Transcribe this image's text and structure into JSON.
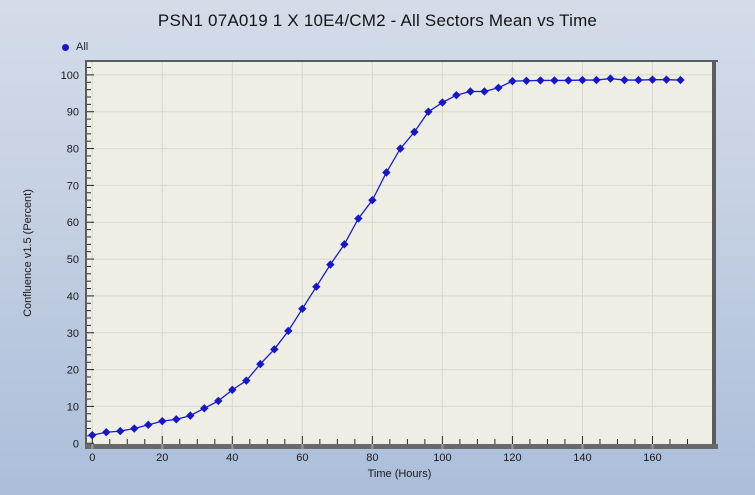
{
  "window": {
    "title": "PSN1 07A019 1 X 10E4/CM2 - All Sectors Mean vs Time"
  },
  "chart_data": {
    "type": "line",
    "title": "PSN1 07A019 1 X 10E4/CM2 - All Sectors Mean vs Time",
    "xlabel": "Time (Hours)",
    "ylabel": "Confluence v1.5 (Percent)",
    "xlim": [
      -1.5,
      177
    ],
    "ylim": [
      -0.2,
      103.5
    ],
    "grid": true,
    "legend_position": "top-left",
    "x_major_ticks": [
      0,
      20,
      40,
      60,
      80,
      100,
      120,
      140,
      160
    ],
    "x_minor_tick_step": 5,
    "y_major_ticks": [
      0,
      10,
      20,
      30,
      40,
      50,
      60,
      70,
      80,
      90,
      100
    ],
    "y_minor_tick_step": 2,
    "series": [
      {
        "name": "All",
        "marker": "diamond",
        "x": [
          0,
          4,
          8,
          12,
          16,
          20,
          24,
          28,
          32,
          36,
          40,
          44,
          48,
          52,
          56,
          60,
          64,
          68,
          72,
          76,
          80,
          84,
          88,
          92,
          96,
          100,
          104,
          108,
          112,
          116,
          120,
          124,
          128,
          132,
          136,
          140,
          144,
          148,
          152,
          156,
          160,
          164,
          168
        ],
        "values": [
          2.2,
          3,
          3.3,
          4,
          5,
          6,
          6.5,
          7.5,
          9.5,
          11.5,
          14.5,
          17,
          21.5,
          25.5,
          30.5,
          36.5,
          42.5,
          48.5,
          54,
          61,
          66,
          73.5,
          80,
          84.5,
          90,
          92.5,
          94.5,
          95.5,
          95.5,
          96.5,
          98.3,
          98.4,
          98.5,
          98.5,
          98.5,
          98.6,
          98.6,
          99,
          98.6,
          98.6,
          98.7,
          98.7,
          98.6
        ]
      }
    ],
    "colors": {
      "series": "#1717c9",
      "line": "#1c1cd0",
      "plot_bg": "#eeeee5",
      "grid": "#d8d8cf",
      "border": "#585d63",
      "bottom_bar": "#68696b",
      "bottom_bar_notch": "#989a9c",
      "tick": "#26262a",
      "text": "#1a1a1a"
    }
  }
}
